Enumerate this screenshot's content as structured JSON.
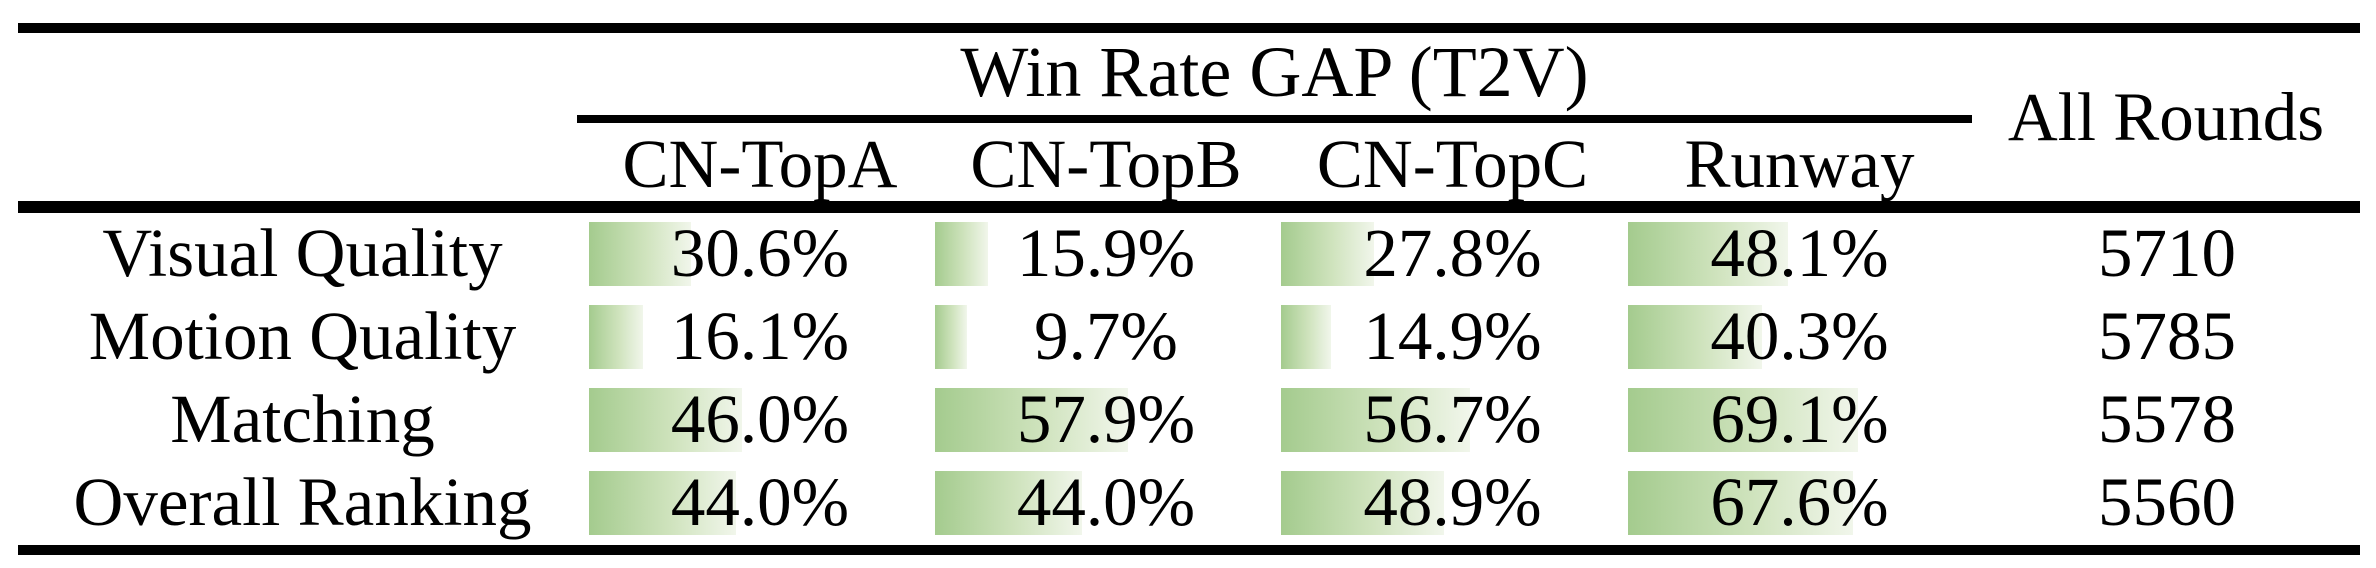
{
  "table": {
    "title": "Win Rate GAP (T2V)",
    "all_rounds_header": "All Rounds",
    "columns": [
      "CN-TopA",
      "CN-TopB",
      "CN-TopC",
      "Runway"
    ],
    "rows": [
      {
        "label": "Visual Quality",
        "cells": [
          {
            "pct": 30.6,
            "text": "30.6%"
          },
          {
            "pct": 15.9,
            "text": "15.9%"
          },
          {
            "pct": 27.8,
            "text": "27.8%"
          },
          {
            "pct": 48.1,
            "text": "48.1%"
          }
        ],
        "rounds": "5710"
      },
      {
        "label": "Motion Quality",
        "cells": [
          {
            "pct": 16.1,
            "text": "16.1%"
          },
          {
            "pct": 9.7,
            "text": "9.7%"
          },
          {
            "pct": 14.9,
            "text": "14.9%"
          },
          {
            "pct": 40.3,
            "text": "40.3%"
          }
        ],
        "rounds": "5785"
      },
      {
        "label": "Matching",
        "cells": [
          {
            "pct": 46.0,
            "text": "46.0%"
          },
          {
            "pct": 57.9,
            "text": "57.9%"
          },
          {
            "pct": 56.7,
            "text": "56.7%"
          },
          {
            "pct": 69.1,
            "text": "69.1%"
          }
        ],
        "rounds": "5578"
      },
      {
        "label": "Overall Ranking",
        "cells": [
          {
            "pct": 44.0,
            "text": "44.0%"
          },
          {
            "pct": 44.0,
            "text": "44.0%"
          },
          {
            "pct": 48.9,
            "text": "48.9%"
          },
          {
            "pct": 67.6,
            "text": "67.6%"
          }
        ],
        "rounds": "5560"
      }
    ],
    "colors": {
      "bar_start": "#a4cb8e",
      "bar_mid": "#cfe3bd",
      "bar_end": "#f1f6eb",
      "rule": "#000000",
      "background": "#ffffff",
      "text": "#000000"
    }
  },
  "chart_data": {
    "type": "table",
    "title": "Win Rate GAP (T2V)",
    "columns": [
      "CN-TopA",
      "CN-TopB",
      "CN-TopC",
      "Runway",
      "All Rounds"
    ],
    "rows": [
      {
        "label": "Visual Quality",
        "values": [
          30.6,
          15.9,
          27.8,
          48.1
        ],
        "all_rounds": 5710
      },
      {
        "label": "Motion Quality",
        "values": [
          16.1,
          9.7,
          14.9,
          40.3
        ],
        "all_rounds": 5785
      },
      {
        "label": "Matching",
        "values": [
          46.0,
          57.9,
          56.7,
          69.1
        ],
        "all_rounds": 5578
      },
      {
        "label": "Overall Ranking",
        "values": [
          44.0,
          44.0,
          48.9,
          67.6
        ],
        "all_rounds": 5560
      }
    ],
    "bar_scale": "green horizontal data bars, width proportional to percentage of cell width"
  }
}
